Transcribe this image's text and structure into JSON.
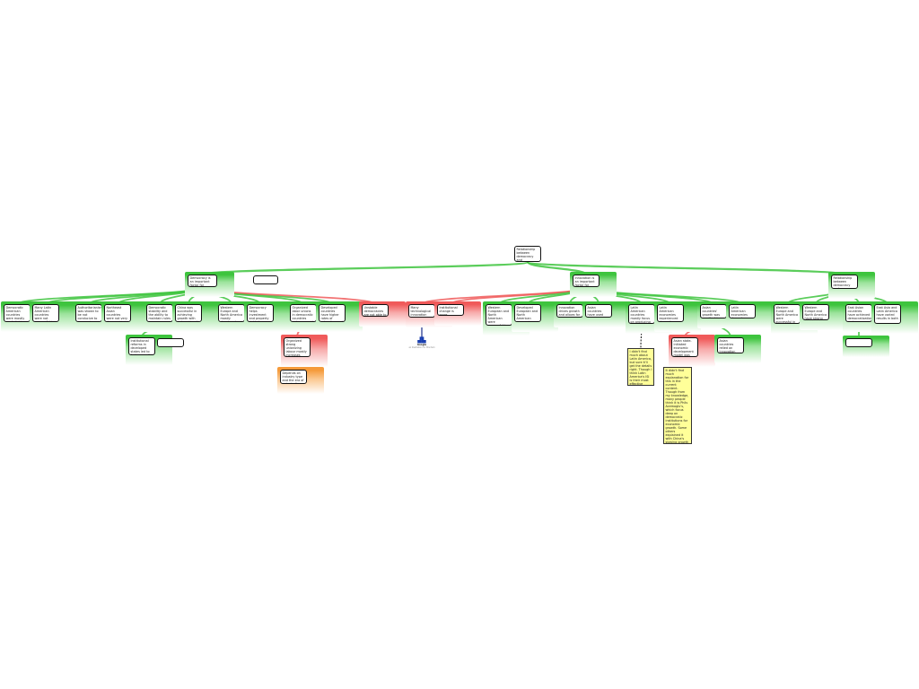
{
  "colors": {
    "support": "#3ec43e",
    "oppose": "#f05a5a",
    "qualifier": "#f59a3a",
    "note": "#ffff99",
    "link": "#1a2f8a"
  },
  "nodes": {
    "root": {
      "kind": "root",
      "text": "Relationship between democracy and innovation in the Big Five economies' economic growth"
    },
    "A": {
      "kind": "support",
      "text": "Democracy is an important factor for economic growth"
    },
    "Ab": {
      "kind": "blank",
      "text": ""
    },
    "B": {
      "kind": "support",
      "text": "Innovation is an important factor for economic growth"
    },
    "C": {
      "kind": "support",
      "text": "Relationship between democracy and innovation is interdependent"
    },
    "a1": {
      "kind": "support",
      "text": "Democratic American countries were mostly capitalist in 20th century"
    },
    "a2": {
      "kind": "support",
      "text": "Many Latin American countries were not successful in achieving democratization"
    },
    "a3": {
      "kind": "support",
      "text": "Authoritarianism was shown to be not conducive to economic transition"
    },
    "a4": {
      "kind": "support",
      "text": "Northeast Asian countries were not very democratic in postwar growth"
    },
    "a5": {
      "kind": "support",
      "text": "Democratic stability and the ability to maintain rules"
    },
    "a5c": {
      "kind": "support",
      "text": "Institutional reforms in developed states led to faster growth"
    },
    "a5b": {
      "kind": "blank",
      "text": ""
    },
    "a6": {
      "kind": "support",
      "text": "China was successful in achieving growth with autocratic rule"
    },
    "a7": {
      "kind": "support",
      "text": "Western Europe and North America mostly developed capitalist economies"
    },
    "a8": {
      "kind": "support",
      "text": "Democracy helps investment and property rights to promote growth"
    },
    "a9": {
      "kind": "support",
      "text": "Organized labor unions in democratic countries reduce growth"
    },
    "a9c": {
      "kind": "oppose",
      "text": "Organized strong unionizing labour mostly increases productivity and innovation"
    },
    "a9cc": {
      "kind": "qualifier",
      "text": "Depends on industry type and the era of unionization"
    },
    "a10": {
      "kind": "support",
      "text": "Developed countries have higher rates of education and health spending"
    },
    "a11": {
      "kind": "oppose",
      "text": "Unstable democracies are not able to improve their growth and innovation"
    },
    "b1": {
      "kind": "oppose",
      "text": "Many technological innovation started in military research projects"
    },
    "b2": {
      "kind": "oppose",
      "text": "Institutional change is more important for growth"
    },
    "b3": {
      "kind": "support",
      "text": "Western European and North American were successful in creating innovation-based economies"
    },
    "b4": {
      "kind": "support",
      "text": "Developed European and North American economies increased research"
    },
    "b5": {
      "kind": "support",
      "text": "Innovation drives growth and allows for capital investment"
    },
    "b6": {
      "kind": "support",
      "text": "Asian countries have used innovation to drive growth"
    },
    "b7": {
      "kind": "support",
      "text": "Latin American countries mostly focus on producing domestic substitute for foreign innovations"
    },
    "b8": {
      "kind": "support",
      "text": "Latin American economies experienced stagnation after a short period of growth"
    },
    "b9": {
      "kind": "support",
      "text": "Asian countries' growth was mostly driven by export innovations"
    },
    "b9r": {
      "kind": "oppose",
      "text": "Asian state-initiated economic development model was driven by the state"
    },
    "b9s": {
      "kind": "support",
      "text": "Asian countries relied on innovation since it is primary for growth"
    },
    "b10": {
      "kind": "support",
      "text": "Latin American economies depend on natural resources and agriculture"
    },
    "c1": {
      "kind": "support",
      "text": "Western Europe and North America were successful in both democracy and innovation"
    },
    "c2": {
      "kind": "support",
      "text": "Western Europe and North America have strong democratic institutions"
    },
    "c3": {
      "kind": "support",
      "text": "East Asian countries have achieved democratization and innovation after growth"
    },
    "c3b": {
      "kind": "blank",
      "text": ""
    },
    "c4": {
      "kind": "support",
      "text": "East Asia and Latin America have varied results in both"
    },
    "n1": {
      "kind": "note",
      "text": "I didn't find much about Latin America, but sure it'll get the details right. Though I think Latin America's ISI is their most effective model of an important point."
    },
    "n2": {
      "kind": "note",
      "text": "It didn't find much explanation for this in the current content. Though from my knowledge, many people think it is Phils Acemoglu's, which focus deep on democratic institutions for economic growth. Some others explained it with China's slowing growth and the dominance of big conglomerates over innovation like Korean development."
    }
  },
  "google_image": {
    "label": "Google",
    "caption": "an illustration for this item"
  }
}
